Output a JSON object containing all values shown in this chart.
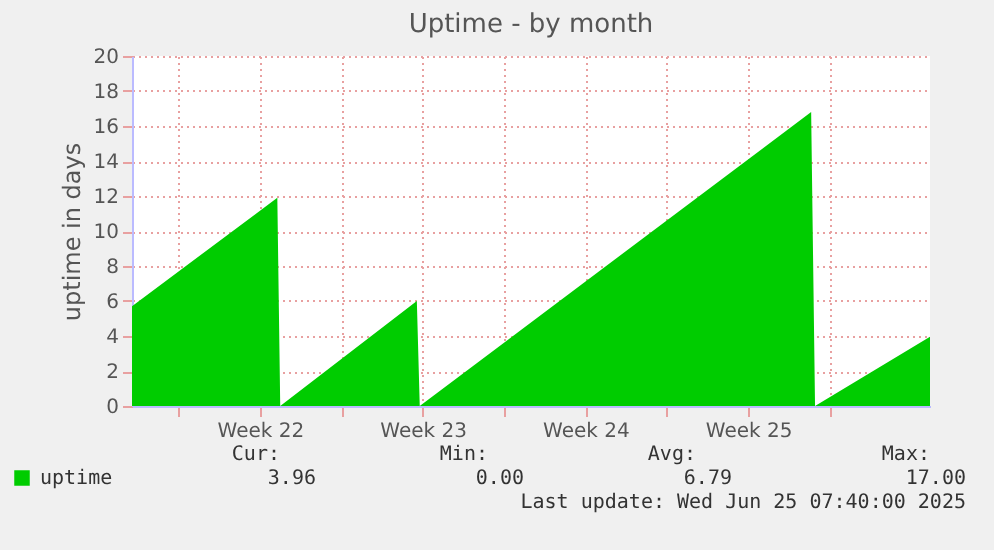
{
  "chart_data": {
    "type": "area",
    "title": "Uptime - by month",
    "ylabel": "uptime in days",
    "x": [
      "2025-05-22T00:00",
      "2025-05-28T06:00",
      "2025-05-28T09:00",
      "2025-06-03T06:00",
      "2025-06-03T09:00",
      "2025-06-20T05:00",
      "2025-06-20T09:00",
      "2025-06-25T07:40"
    ],
    "series": [
      {
        "name": "uptime",
        "color": "#00cc00",
        "values": [
          5.7,
          11.9,
          0,
          6.0,
          0,
          16.8,
          0,
          3.96
        ]
      }
    ],
    "xlim": [
      "2025-05-22T00:00",
      "2025-06-25T07:40"
    ],
    "xticks": [
      {
        "value": "2025-05-24",
        "label": null
      },
      {
        "value": "2025-05-27T12:00",
        "label": "Week 22"
      },
      {
        "value": "2025-05-31",
        "label": null
      },
      {
        "value": "2025-06-03T12:00",
        "label": "Week 23"
      },
      {
        "value": "2025-06-07",
        "label": null
      },
      {
        "value": "2025-06-10T12:00",
        "label": "Week 24"
      },
      {
        "value": "2025-06-14",
        "label": null
      },
      {
        "value": "2025-06-17T12:00",
        "label": "Week 25"
      },
      {
        "value": "2025-06-21",
        "label": null
      }
    ],
    "ylim": [
      0,
      20
    ],
    "yticks": [
      0,
      2,
      4,
      6,
      8,
      10,
      12,
      14,
      16,
      18,
      20
    ],
    "grid": true,
    "legend": "bottom",
    "annotations": [
      "Cur:",
      "3.96",
      "Min:",
      "0.00",
      "Avg:",
      "6.79",
      "Max:",
      "17.00",
      "Last update: Wed Jun 25 07:40:00 2025"
    ]
  }
}
